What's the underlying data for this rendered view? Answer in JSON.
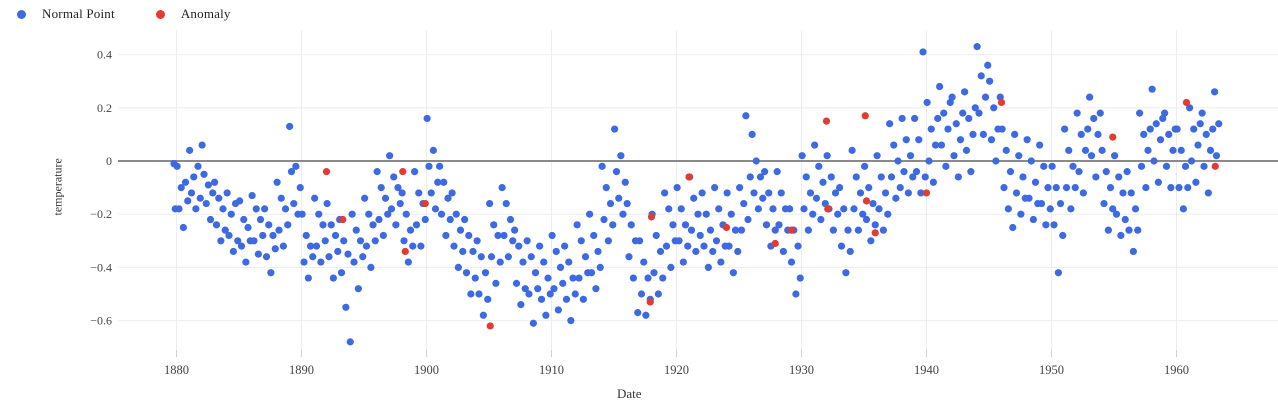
{
  "legend": {
    "items": [
      {
        "label": "Normal Point",
        "color": "#3D6AE3"
      },
      {
        "label": "Anomaly",
        "color": "#E33B2F"
      }
    ]
  },
  "colors": {
    "normal_point": "#3D6AE3",
    "anomaly_point": "#E33B2F",
    "grid_line": "#ededed",
    "zero_line": "#8a8a8a",
    "tick_text": "#444444"
  },
  "chart_data": {
    "type": "scatter",
    "title": "",
    "xlabel": "Date",
    "ylabel": "temperature",
    "grid": true,
    "legend_position": "top-left",
    "x_axis": {
      "tick_labels": [
        "1880",
        "1890",
        "1900",
        "1910",
        "1920",
        "1930",
        "1940",
        "1950",
        "1960"
      ],
      "tick_values": [
        1880,
        1890,
        1900,
        1910,
        1920,
        1930,
        1940,
        1950,
        1960
      ],
      "range": [
        1875.1,
        1968.2
      ]
    },
    "y_axis": {
      "tick_labels": [
        "0.4",
        "0.2",
        "0",
        "−0.2",
        "−0.4",
        "−0.6"
      ],
      "tick_values": [
        0.4,
        0.2,
        0,
        -0.2,
        -0.4,
        -0.6
      ],
      "range": [
        -0.72,
        0.46
      ],
      "zero_line": true
    },
    "series": [
      {
        "name": "Normal Point",
        "color": "#3D6AE3",
        "marker_diameter_px": 7,
        "x_offsets": [
          0.05,
          0.2,
          0.38,
          0.55,
          0.72,
          0.9
        ],
        "extra_points": [
          [
            1879.8,
            -0.01
          ],
          [
            1879.9,
            -0.18
          ]
        ],
        "by_year": [
          [
            1880,
            -0.02,
            -0.18,
            -0.1,
            -0.25,
            -0.08,
            -0.15
          ],
          [
            1881,
            0.04,
            -0.12,
            -0.06,
            -0.18,
            -0.02,
            -0.14
          ],
          [
            1882,
            0.06,
            -0.05,
            -0.16,
            -0.09,
            -0.22,
            -0.12
          ],
          [
            1883,
            -0.08,
            -0.24,
            -0.14,
            -0.3,
            -0.18,
            -0.26
          ],
          [
            1884,
            -0.12,
            -0.28,
            -0.2,
            -0.34,
            -0.16,
            -0.3
          ],
          [
            1885,
            -0.15,
            -0.32,
            -0.22,
            -0.38,
            -0.25,
            -0.3
          ],
          [
            1886,
            -0.13,
            -0.3,
            -0.18,
            -0.35,
            -0.22,
            -0.28
          ],
          [
            1887,
            -0.18,
            -0.36,
            -0.24,
            -0.42,
            -0.28,
            -0.33
          ],
          [
            1888,
            -0.08,
            -0.26,
            -0.14,
            -0.32,
            -0.18,
            -0.24
          ],
          [
            1889,
            0.13,
            -0.04,
            -0.16,
            -0.02,
            -0.2,
            -0.1
          ],
          [
            1890,
            -0.2,
            -0.38,
            -0.28,
            -0.44,
            -0.32,
            -0.36
          ],
          [
            1891,
            -0.14,
            -0.32,
            -0.2,
            -0.38,
            -0.24,
            -0.3
          ],
          [
            1892,
            -0.16,
            -0.36,
            -0.24,
            -0.44,
            -0.28,
            -0.34
          ],
          [
            1893,
            -0.22,
            -0.42,
            -0.3,
            -0.55,
            -0.35,
            -0.68
          ],
          [
            1894,
            -0.2,
            -0.38,
            -0.26,
            -0.48,
            -0.3,
            -0.36
          ],
          [
            1895,
            -0.14,
            -0.32,
            -0.2,
            -0.4,
            -0.24,
            -0.3
          ],
          [
            1896,
            -0.04,
            -0.22,
            -0.1,
            -0.28,
            -0.14,
            -0.2
          ],
          [
            1897,
            0.02,
            -0.18,
            -0.06,
            -0.24,
            -0.1,
            -0.16
          ],
          [
            1898,
            -0.12,
            -0.3,
            -0.2,
            -0.38,
            -0.26,
            -0.32
          ],
          [
            1899,
            -0.04,
            -0.24,
            -0.12,
            -0.32,
            -0.16,
            -0.22
          ],
          [
            1900,
            0.16,
            -0.02,
            -0.12,
            0.04,
            -0.18,
            -0.08
          ],
          [
            1901,
            -0.02,
            -0.2,
            -0.08,
            -0.28,
            -0.14,
            -0.22
          ],
          [
            1902,
            -0.12,
            -0.32,
            -0.2,
            -0.4,
            -0.26,
            -0.34
          ],
          [
            1903,
            -0.22,
            -0.42,
            -0.28,
            -0.5,
            -0.34,
            -0.44
          ],
          [
            1904,
            -0.3,
            -0.5,
            -0.36,
            -0.58,
            -0.42,
            -0.52
          ],
          [
            1905,
            -0.16,
            -0.36,
            -0.24,
            -0.46,
            -0.28,
            -0.38
          ],
          [
            1906,
            -0.1,
            -0.28,
            -0.16,
            -0.36,
            -0.22,
            -0.3
          ],
          [
            1907,
            -0.26,
            -0.46,
            -0.32,
            -0.54,
            -0.38,
            -0.48
          ],
          [
            1908,
            -0.3,
            -0.5,
            -0.36,
            -0.61,
            -0.42,
            -0.48
          ],
          [
            1909,
            -0.32,
            -0.52,
            -0.38,
            -0.58,
            -0.44,
            -0.5
          ],
          [
            1910,
            -0.28,
            -0.48,
            -0.34,
            -0.56,
            -0.4,
            -0.46
          ],
          [
            1911,
            -0.32,
            -0.52,
            -0.38,
            -0.6,
            -0.44,
            -0.5
          ],
          [
            1912,
            -0.24,
            -0.44,
            -0.3,
            -0.52,
            -0.36,
            -0.42
          ],
          [
            1913,
            -0.2,
            -0.42,
            -0.28,
            -0.48,
            -0.34,
            -0.4
          ],
          [
            1914,
            -0.02,
            -0.22,
            -0.1,
            -0.3,
            -0.16,
            -0.24
          ],
          [
            1915,
            0.12,
            -0.04,
            -0.14,
            0.02,
            -0.2,
            -0.08
          ],
          [
            1916,
            -0.16,
            -0.36,
            -0.24,
            -0.44,
            -0.3,
            -0.57
          ],
          [
            1917,
            -0.3,
            -0.5,
            -0.38,
            -0.58,
            -0.44,
            -0.52
          ],
          [
            1918,
            -0.2,
            -0.42,
            -0.28,
            -0.5,
            -0.34,
            -0.44
          ],
          [
            1919,
            -0.12,
            -0.32,
            -0.18,
            -0.4,
            -0.24,
            -0.3
          ],
          [
            1920,
            -0.1,
            -0.3,
            -0.18,
            -0.38,
            -0.24,
            -0.32
          ],
          [
            1921,
            -0.06,
            -0.26,
            -0.14,
            -0.34,
            -0.2,
            -0.28
          ],
          [
            1922,
            -0.12,
            -0.32,
            -0.2,
            -0.4,
            -0.26,
            -0.34
          ],
          [
            1923,
            -0.1,
            -0.3,
            -0.18,
            -0.38,
            -0.24,
            -0.32
          ],
          [
            1924,
            -0.12,
            -0.32,
            -0.2,
            -0.42,
            -0.26,
            -0.34
          ],
          [
            1925,
            -0.1,
            -0.26,
            -0.16,
            0.17,
            -0.22,
            -0.06
          ],
          [
            1926,
            0.1,
            -0.12,
            0.0,
            -0.18,
            -0.06,
            -0.14
          ],
          [
            1927,
            -0.04,
            -0.24,
            -0.12,
            -0.32,
            -0.18,
            -0.26
          ],
          [
            1928,
            -0.04,
            -0.24,
            -0.12,
            -0.34,
            -0.18,
            -0.26
          ],
          [
            1929,
            -0.18,
            -0.38,
            -0.26,
            -0.5,
            -0.32,
            -0.44
          ],
          [
            1930,
            0.02,
            -0.18,
            -0.06,
            -0.26,
            -0.12,
            -0.2
          ],
          [
            1931,
            0.06,
            -0.14,
            -0.02,
            -0.22,
            -0.08,
            -0.16
          ],
          [
            1932,
            0.02,
            -0.18,
            -0.06,
            -0.26,
            -0.12,
            -0.2
          ],
          [
            1933,
            -0.1,
            -0.32,
            -0.18,
            -0.42,
            -0.26,
            -0.34
          ],
          [
            1934,
            0.04,
            -0.18,
            -0.06,
            -0.26,
            -0.12,
            -0.2
          ],
          [
            1935,
            -0.02,
            -0.22,
            -0.1,
            -0.3,
            -0.16,
            -0.24
          ],
          [
            1936,
            0.02,
            -0.18,
            -0.06,
            -0.26,
            -0.12,
            -0.2
          ],
          [
            1937,
            0.14,
            -0.06,
            0.06,
            -0.14,
            0.0,
            -0.1
          ],
          [
            1938,
            0.16,
            -0.04,
            0.08,
            -0.12,
            0.02,
            -0.06
          ],
          [
            1939,
            0.16,
            -0.04,
            0.08,
            -0.12,
            0.41,
            -0.06
          ],
          [
            1940,
            0.22,
            0.0,
            0.12,
            -0.08,
            0.06,
            0.16
          ],
          [
            1941,
            0.28,
            0.06,
            0.18,
            -0.02,
            0.12,
            0.22
          ],
          [
            1942,
            0.24,
            0.02,
            0.14,
            -0.06,
            0.08,
            0.18
          ],
          [
            1943,
            0.26,
            0.04,
            0.16,
            -0.04,
            0.1,
            0.2
          ],
          [
            1944,
            0.43,
            0.18,
            0.32,
            0.1,
            0.24,
            0.36
          ],
          [
            1945,
            0.3,
            0.08,
            0.2,
            0.0,
            0.12,
            0.24
          ],
          [
            1946,
            0.12,
            -0.1,
            0.04,
            -0.18,
            -0.04,
            -0.25
          ],
          [
            1947,
            0.1,
            -0.12,
            0.02,
            -0.2,
            -0.06,
            -0.14
          ],
          [
            1948,
            0.08,
            -0.14,
            0.0,
            -0.22,
            -0.08,
            -0.16
          ],
          [
            1949,
            0.06,
            -0.16,
            -0.02,
            -0.24,
            -0.1,
            -0.18
          ],
          [
            1950,
            -0.02,
            -0.24,
            -0.1,
            -0.42,
            -0.16,
            -0.28
          ],
          [
            1951,
            0.12,
            -0.1,
            0.04,
            -0.18,
            -0.02,
            -0.1
          ],
          [
            1952,
            0.18,
            -0.04,
            0.1,
            -0.12,
            0.04,
            0.12
          ],
          [
            1953,
            0.24,
            0.02,
            0.16,
            -0.06,
            0.1,
            0.18
          ],
          [
            1954,
            0.04,
            -0.16,
            -0.04,
            -0.26,
            -0.1,
            -0.18
          ],
          [
            1955,
            0.02,
            -0.2,
            -0.06,
            -0.28,
            -0.12,
            -0.22
          ],
          [
            1956,
            -0.04,
            -0.26,
            -0.12,
            -0.34,
            -0.18,
            -0.26
          ],
          [
            1957,
            0.18,
            -0.02,
            0.1,
            -0.1,
            0.04,
            0.12
          ],
          [
            1958,
            0.27,
            0.0,
            0.14,
            -0.08,
            0.08,
            0.16
          ],
          [
            1959,
            0.18,
            -0.02,
            0.1,
            -0.1,
            0.04,
            0.12
          ],
          [
            1960,
            0.12,
            -0.1,
            0.04,
            -0.18,
            -0.02,
            -0.1
          ],
          [
            1961,
            0.2,
            0.0,
            0.12,
            -0.08,
            0.06,
            0.14
          ],
          [
            1962,
            0.18,
            -0.02,
            0.1,
            -0.12,
            0.04,
            0.12
          ],
          [
            1963,
            0.26,
            0.02,
            0.14
          ]
        ]
      },
      {
        "name": "Anomaly",
        "color": "#E33B2F",
        "marker_diameter_px": 7,
        "points": [
          [
            1892.0,
            -0.04
          ],
          [
            1893.3,
            -0.22
          ],
          [
            1898.1,
            -0.04
          ],
          [
            1898.3,
            -0.34
          ],
          [
            1899.9,
            -0.16
          ],
          [
            1905.1,
            -0.62
          ],
          [
            1917.9,
            -0.53
          ],
          [
            1918.0,
            -0.21
          ],
          [
            1921.0,
            -0.06
          ],
          [
            1924.0,
            -0.25
          ],
          [
            1927.9,
            -0.31
          ],
          [
            1929.2,
            -0.26
          ],
          [
            1932.0,
            0.15
          ],
          [
            1932.1,
            -0.18
          ],
          [
            1935.1,
            0.17
          ],
          [
            1935.2,
            -0.15
          ],
          [
            1935.9,
            -0.27
          ],
          [
            1940.0,
            -0.12
          ],
          [
            1946.0,
            0.22
          ],
          [
            1954.9,
            0.09
          ],
          [
            1960.8,
            0.22
          ],
          [
            1963.1,
            -0.02
          ]
        ]
      }
    ]
  }
}
